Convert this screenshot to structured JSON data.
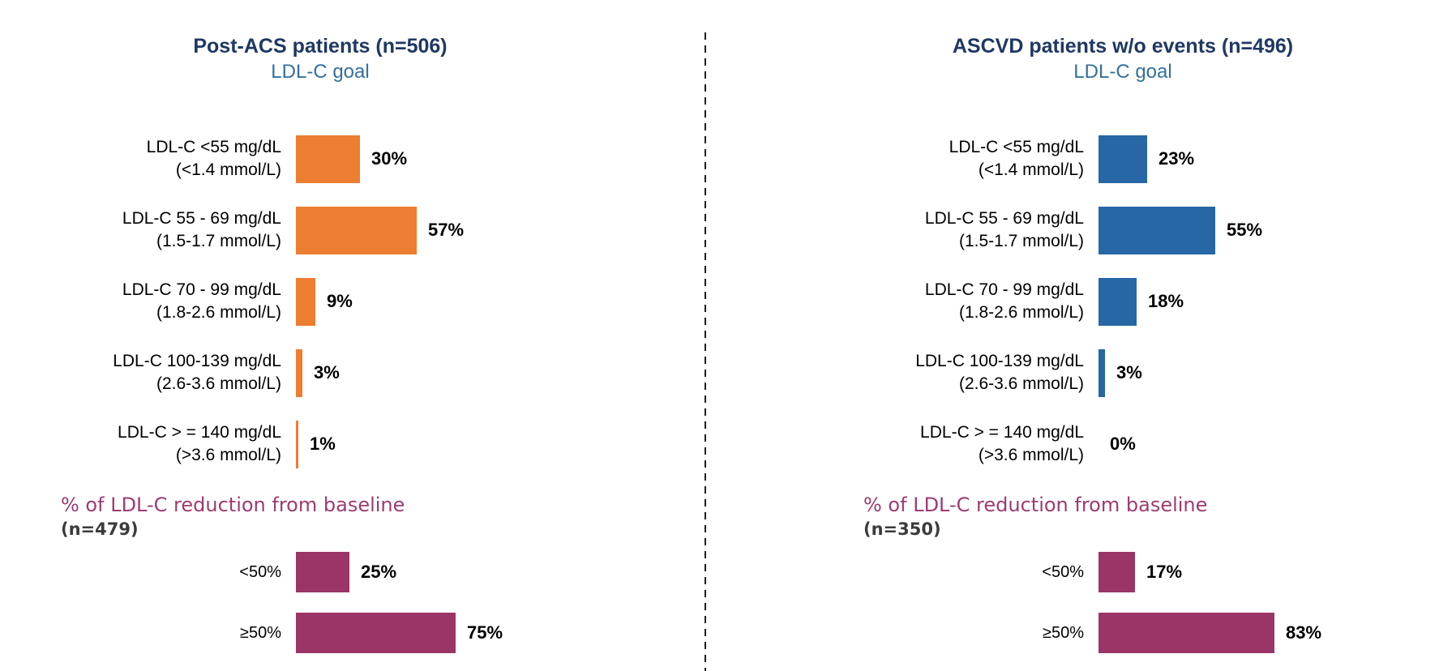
{
  "unit": "%",
  "colors": {
    "title_navy": "#1F3864",
    "subtitle_blue": "#31719F",
    "orange_bar": "#ED7D31",
    "blue_bar": "#2767A5",
    "purple_bar": "#9B3567",
    "reduction_header_purple": "#9D3C70",
    "n_label_gray": "#3B3B3B",
    "divider_black": "#1A1A1A",
    "label_black": "#000000"
  },
  "panels": [
    {
      "title": "Post-ACS patients (n=506)",
      "subtitle": "LDL-C goal",
      "goal": {
        "bar_color": "#ED7D31",
        "rows": [
          {
            "label_lines": [
              "LDL-C <55 mg/dL",
              "(<1.4 mmol/L)"
            ],
            "value": 30
          },
          {
            "label_lines": [
              "LDL-C 55 - 69 mg/dL",
              "(1.5-1.7 mmol/L)"
            ],
            "value": 57
          },
          {
            "label_lines": [
              "LDL-C 70 - 99 mg/dL",
              "(1.8-2.6 mmol/L)"
            ],
            "value": 9
          },
          {
            "label_lines": [
              "LDL-C 100-139 mg/dL",
              "(2.6-3.6 mmol/L)"
            ],
            "value": 3
          },
          {
            "label_lines": [
              "LDL-C > = 140 mg/dL",
              "(>3.6 mmol/L)"
            ],
            "value": 1
          }
        ]
      },
      "reduction": {
        "header": "% of LDL-C reduction from baseline",
        "n_label": "(n=479)",
        "bar_color": "#9B3567",
        "rows": [
          {
            "label_lines": [
              "<50%"
            ],
            "value": 25
          },
          {
            "label_lines": [
              "≥50%"
            ],
            "value": 75
          }
        ]
      }
    },
    {
      "title": "ASCVD patients w/o events (n=496)",
      "subtitle": "LDL-C goal",
      "goal": {
        "bar_color": "#2767A5",
        "rows": [
          {
            "label_lines": [
              "LDL-C <55 mg/dL",
              "(<1.4 mmol/L)"
            ],
            "value": 23
          },
          {
            "label_lines": [
              "LDL-C 55 - 69 mg/dL",
              "(1.5-1.7 mmol/L)"
            ],
            "value": 55
          },
          {
            "label_lines": [
              "LDL-C 70 - 99 mg/dL",
              "(1.8-2.6 mmol/L)"
            ],
            "value": 18
          },
          {
            "label_lines": [
              "LDL-C 100-139 mg/dL",
              "(2.6-3.6 mmol/L)"
            ],
            "value": 3
          },
          {
            "label_lines": [
              "LDL-C > = 140 mg/dL",
              "(>3.6 mmol/L)"
            ],
            "value": 0
          }
        ]
      },
      "reduction": {
        "header": "% of LDL-C reduction from baseline",
        "n_label": "(n=350)",
        "bar_color": "#9B3567",
        "rows": [
          {
            "label_lines": [
              "<50%"
            ],
            "value": 17
          },
          {
            "label_lines": [
              "≥50%"
            ],
            "value": 83
          }
        ]
      }
    }
  ],
  "chart_data": [
    {
      "type": "bar",
      "orientation": "horizontal",
      "panel": "Post-ACS patients (n=506)",
      "title": "LDL-C goal",
      "categories": [
        "LDL-C <55 mg/dL (<1.4 mmol/L)",
        "LDL-C 55 - 69 mg/dL (1.5-1.7 mmol/L)",
        "LDL-C 70 - 99 mg/dL (1.8-2.6 mmol/L)",
        "LDL-C 100-139 mg/dL (2.6-3.6 mmol/L)",
        "LDL-C > = 140 mg/dL (>3.6 mmol/L)"
      ],
      "values": [
        30,
        57,
        9,
        3,
        1
      ],
      "unit": "%",
      "xlim": [
        0,
        100
      ],
      "bar_color": "#ED7D31",
      "value_labels": true,
      "grid": false,
      "legend": false
    },
    {
      "type": "bar",
      "orientation": "horizontal",
      "panel": "Post-ACS patients (n=506)",
      "title": "% of LDL-C reduction from baseline (n=479)",
      "categories": [
        "<50%",
        "≥50%"
      ],
      "values": [
        25,
        75
      ],
      "unit": "%",
      "xlim": [
        0,
        100
      ],
      "bar_color": "#9B3567",
      "value_labels": true,
      "grid": false,
      "legend": false
    },
    {
      "type": "bar",
      "orientation": "horizontal",
      "panel": "ASCVD patients w/o events (n=496)",
      "title": "LDL-C goal",
      "categories": [
        "LDL-C <55 mg/dL (<1.4 mmol/L)",
        "LDL-C 55 - 69 mg/dL (1.5-1.7 mmol/L)",
        "LDL-C 70 - 99 mg/dL (1.8-2.6 mmol/L)",
        "LDL-C 100-139 mg/dL (2.6-3.6 mmol/L)",
        "LDL-C > = 140 mg/dL (>3.6 mmol/L)"
      ],
      "values": [
        23,
        55,
        18,
        3,
        0
      ],
      "unit": "%",
      "xlim": [
        0,
        100
      ],
      "bar_color": "#2767A5",
      "value_labels": true,
      "grid": false,
      "legend": false
    },
    {
      "type": "bar",
      "orientation": "horizontal",
      "panel": "ASCVD patients w/o events (n=496)",
      "title": "% of LDL-C reduction from baseline (n=350)",
      "categories": [
        "<50%",
        "≥50%"
      ],
      "values": [
        17,
        83
      ],
      "unit": "%",
      "xlim": [
        0,
        100
      ],
      "bar_color": "#9B3567",
      "value_labels": true,
      "grid": false,
      "legend": false
    }
  ]
}
